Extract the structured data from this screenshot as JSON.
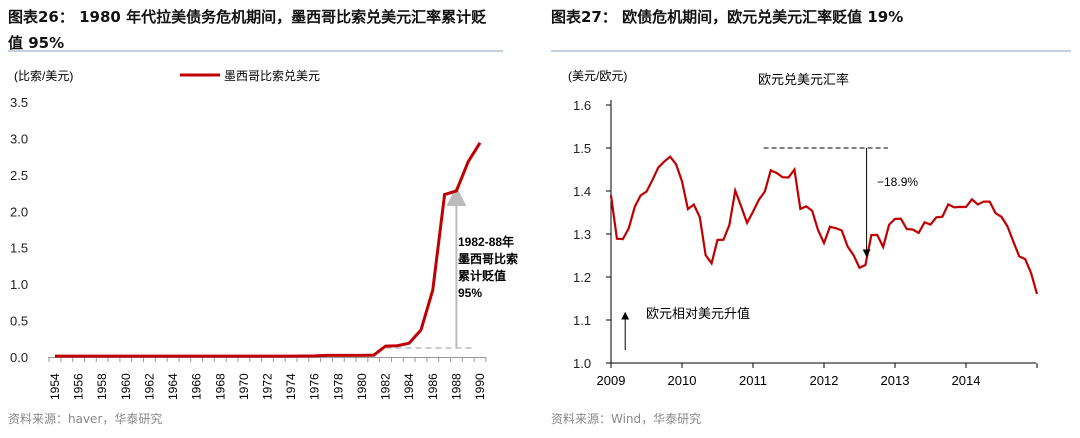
{
  "left": {
    "title": "图表26： 1980 年代拉美债务危机期间，墨西哥比索兑美元汇率累计贬值 95%",
    "title_line1": "图表26： 1980 年代拉美债务危机期间，墨西哥比索兑美元汇率累计贬",
    "title_line2": "值 95%",
    "source": "资料来源：haver，华泰研究"
  },
  "right": {
    "title": "图表27： 欧债危机期间，欧元兑美元汇率贬值 19%",
    "source": "资料来源：Wind，华泰研究"
  },
  "chart_data": [
    {
      "type": "line",
      "ylabel": "(比索/美元)",
      "ylim": [
        0,
        3.5
      ],
      "yticks": [
        "0.0",
        "0.5",
        "1.0",
        "1.5",
        "2.0",
        "2.5",
        "3.0",
        "3.5"
      ],
      "xticks": [
        "1954",
        "1956",
        "1958",
        "1960",
        "1962",
        "1964",
        "1966",
        "1968",
        "1970",
        "1972",
        "1974",
        "1976",
        "1978",
        "1980",
        "1982",
        "1984",
        "1986",
        "1988",
        "1990"
      ],
      "series": [
        {
          "name": "墨西哥比索兑美元",
          "color": "#c00000",
          "x": [
            1954,
            1956,
            1958,
            1960,
            1962,
            1964,
            1966,
            1968,
            1970,
            1972,
            1974,
            1976,
            1977,
            1978,
            1979,
            1980,
            1981,
            1982,
            1983,
            1984,
            1985,
            1986,
            1987,
            1988,
            1989,
            1990
          ],
          "values": [
            0.0125,
            0.0125,
            0.0125,
            0.0125,
            0.0125,
            0.0125,
            0.0125,
            0.0125,
            0.0125,
            0.0125,
            0.0125,
            0.015,
            0.022,
            0.023,
            0.023,
            0.023,
            0.025,
            0.15,
            0.155,
            0.19,
            0.37,
            0.92,
            2.23,
            2.28,
            2.68,
            2.94
          ]
        }
      ],
      "annotation": {
        "text_lines": [
          "1982-88年",
          "墨西哥比索",
          "累计贬值",
          "95%"
        ]
      },
      "grid": false,
      "legend": "top"
    },
    {
      "type": "line",
      "title": "欧元兑美元汇率",
      "ylabel": "(美元/欧元)",
      "ylim": [
        1.0,
        1.6
      ],
      "yticks": [
        "1.0",
        "1.1",
        "1.2",
        "1.3",
        "1.4",
        "1.5",
        "1.6"
      ],
      "xticks": [
        "2009",
        "2010",
        "2011",
        "2012",
        "2013",
        "2014"
      ],
      "series": [
        {
          "color": "#c00000",
          "start": 2009,
          "step_months": 1,
          "values": [
            1.39,
            1.28,
            1.3,
            1.32,
            1.36,
            1.4,
            1.41,
            1.43,
            1.46,
            1.48,
            1.49,
            1.46,
            1.43,
            1.37,
            1.36,
            1.34,
            1.26,
            1.22,
            1.28,
            1.29,
            1.31,
            1.39,
            1.36,
            1.32,
            1.34,
            1.37,
            1.4,
            1.44,
            1.43,
            1.44,
            1.43,
            1.44,
            1.37,
            1.37,
            1.35,
            1.32,
            1.29,
            1.32,
            1.32,
            1.32,
            1.28,
            1.25,
            1.23,
            1.24,
            1.29,
            1.3,
            1.28,
            1.31,
            1.33,
            1.34,
            1.3,
            1.3,
            1.3,
            1.32,
            1.31,
            1.33,
            1.34,
            1.36,
            1.35,
            1.37,
            1.36,
            1.37,
            1.38,
            1.38,
            1.37,
            1.36,
            1.35,
            1.32,
            1.29,
            1.26,
            1.25,
            1.21,
            1.17
          ]
        }
      ],
      "annotations": {
        "drop": "−18.9%",
        "rise": "欧元相对美元升值"
      },
      "grid": false
    }
  ]
}
